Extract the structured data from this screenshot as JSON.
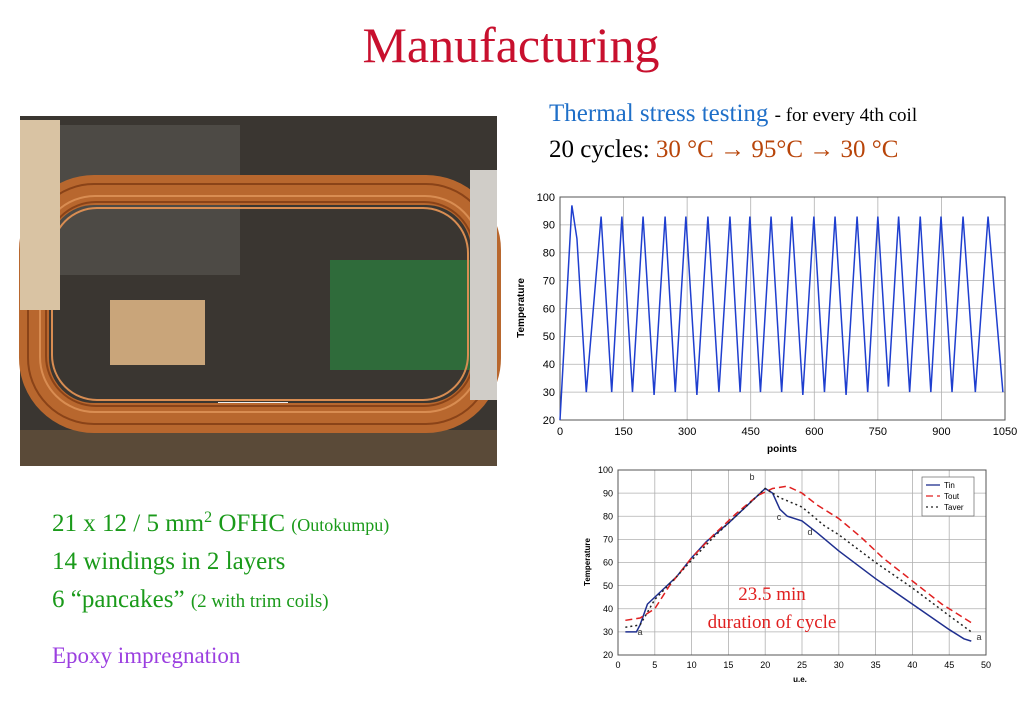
{
  "title": "Manufacturing",
  "thermal": {
    "heading": "Thermal stress testing",
    "note": "- for every 4th coil",
    "cycles_label": "20 cycles:",
    "cycles": "30 °C → 95°C → 30 °C"
  },
  "specs": {
    "line1": "21 x 12 / 5 mm",
    "line1_sup": "2",
    "line1_rest": " OFHC",
    "line1_note": "(Outokumpu)",
    "line2": "14 windings in 2 layers",
    "line3": "6 “pancakes”",
    "line3_note": "(2 with trim coils)",
    "epoxy": "Epoxy impregnation"
  },
  "chart_data": [
    {
      "type": "line",
      "ylabel": "Temperature",
      "xlabel": "points",
      "color": "#1f3fcf",
      "grid": true,
      "xlim": [
        0,
        1050
      ],
      "ylim": [
        20,
        100
      ],
      "xticks": [
        0,
        150,
        300,
        450,
        600,
        750,
        900,
        1050
      ],
      "yticks": [
        20,
        30,
        40,
        50,
        60,
        70,
        80,
        90,
        100
      ],
      "x": [
        0,
        28,
        40,
        62,
        97,
        122,
        146,
        171,
        196,
        222,
        248,
        272,
        297,
        323,
        349,
        375,
        401,
        425,
        448,
        473,
        498,
        523,
        547,
        573,
        599,
        624,
        649,
        675,
        701,
        726,
        750,
        775,
        799,
        825,
        850,
        875,
        899,
        925,
        951,
        980,
        1010,
        1045
      ],
      "values": [
        20,
        97,
        85,
        30,
        93,
        30,
        93,
        30,
        93,
        29,
        93,
        30,
        93,
        29,
        93,
        30,
        93,
        30,
        93,
        30,
        93,
        30,
        93,
        29,
        93,
        30,
        93,
        29,
        93,
        30,
        93,
        32,
        93,
        30,
        93,
        30,
        93,
        30,
        93,
        30,
        93,
        30
      ]
    },
    {
      "type": "line",
      "ylabel": "Temperature",
      "xlabel": "u.e.",
      "grid": true,
      "legend": "upper right",
      "xlim": [
        0,
        50
      ],
      "ylim": [
        20,
        100
      ],
      "xticks": [
        0,
        5,
        10,
        15,
        20,
        25,
        30,
        35,
        40,
        45,
        50
      ],
      "yticks": [
        20,
        30,
        40,
        50,
        60,
        70,
        80,
        90,
        100
      ],
      "annotations": [
        "a",
        "b",
        "c",
        "d",
        "a",
        "23.5 min",
        "duration of cycle"
      ],
      "series": [
        {
          "name": "Tin",
          "color": "#1f2f8f",
          "dash": "solid",
          "x": [
            1,
            2.5,
            3,
            4,
            6,
            8,
            10,
            12,
            15,
            18,
            20,
            21,
            22,
            23,
            25,
            27,
            30,
            35,
            40,
            45,
            47,
            48
          ],
          "values": [
            30,
            30,
            33,
            42,
            48,
            54,
            62,
            69,
            77,
            86,
            92,
            90,
            83,
            80,
            78,
            73,
            65,
            53,
            42,
            31,
            27,
            26
          ]
        },
        {
          "name": "Tout",
          "color": "#e02020",
          "dash": "dashed",
          "x": [
            1,
            3,
            5,
            7,
            10,
            13,
            16,
            19,
            21,
            23,
            25,
            27,
            30,
            33,
            36,
            40,
            44,
            48
          ],
          "values": [
            35,
            36,
            40,
            50,
            62,
            72,
            81,
            89,
            92,
            93,
            90,
            85,
            79,
            71,
            62,
            52,
            42,
            34
          ]
        },
        {
          "name": "Taver",
          "color": "#222222",
          "dash": "dotted",
          "x": [
            1,
            3,
            5,
            8,
            10,
            13,
            16,
            19,
            20,
            22,
            25,
            28,
            30,
            35,
            40,
            45,
            48
          ],
          "values": [
            32,
            33,
            44,
            54,
            61,
            71,
            80,
            89,
            92,
            88,
            84,
            76,
            72,
            60,
            49,
            37,
            30
          ]
        }
      ]
    }
  ]
}
